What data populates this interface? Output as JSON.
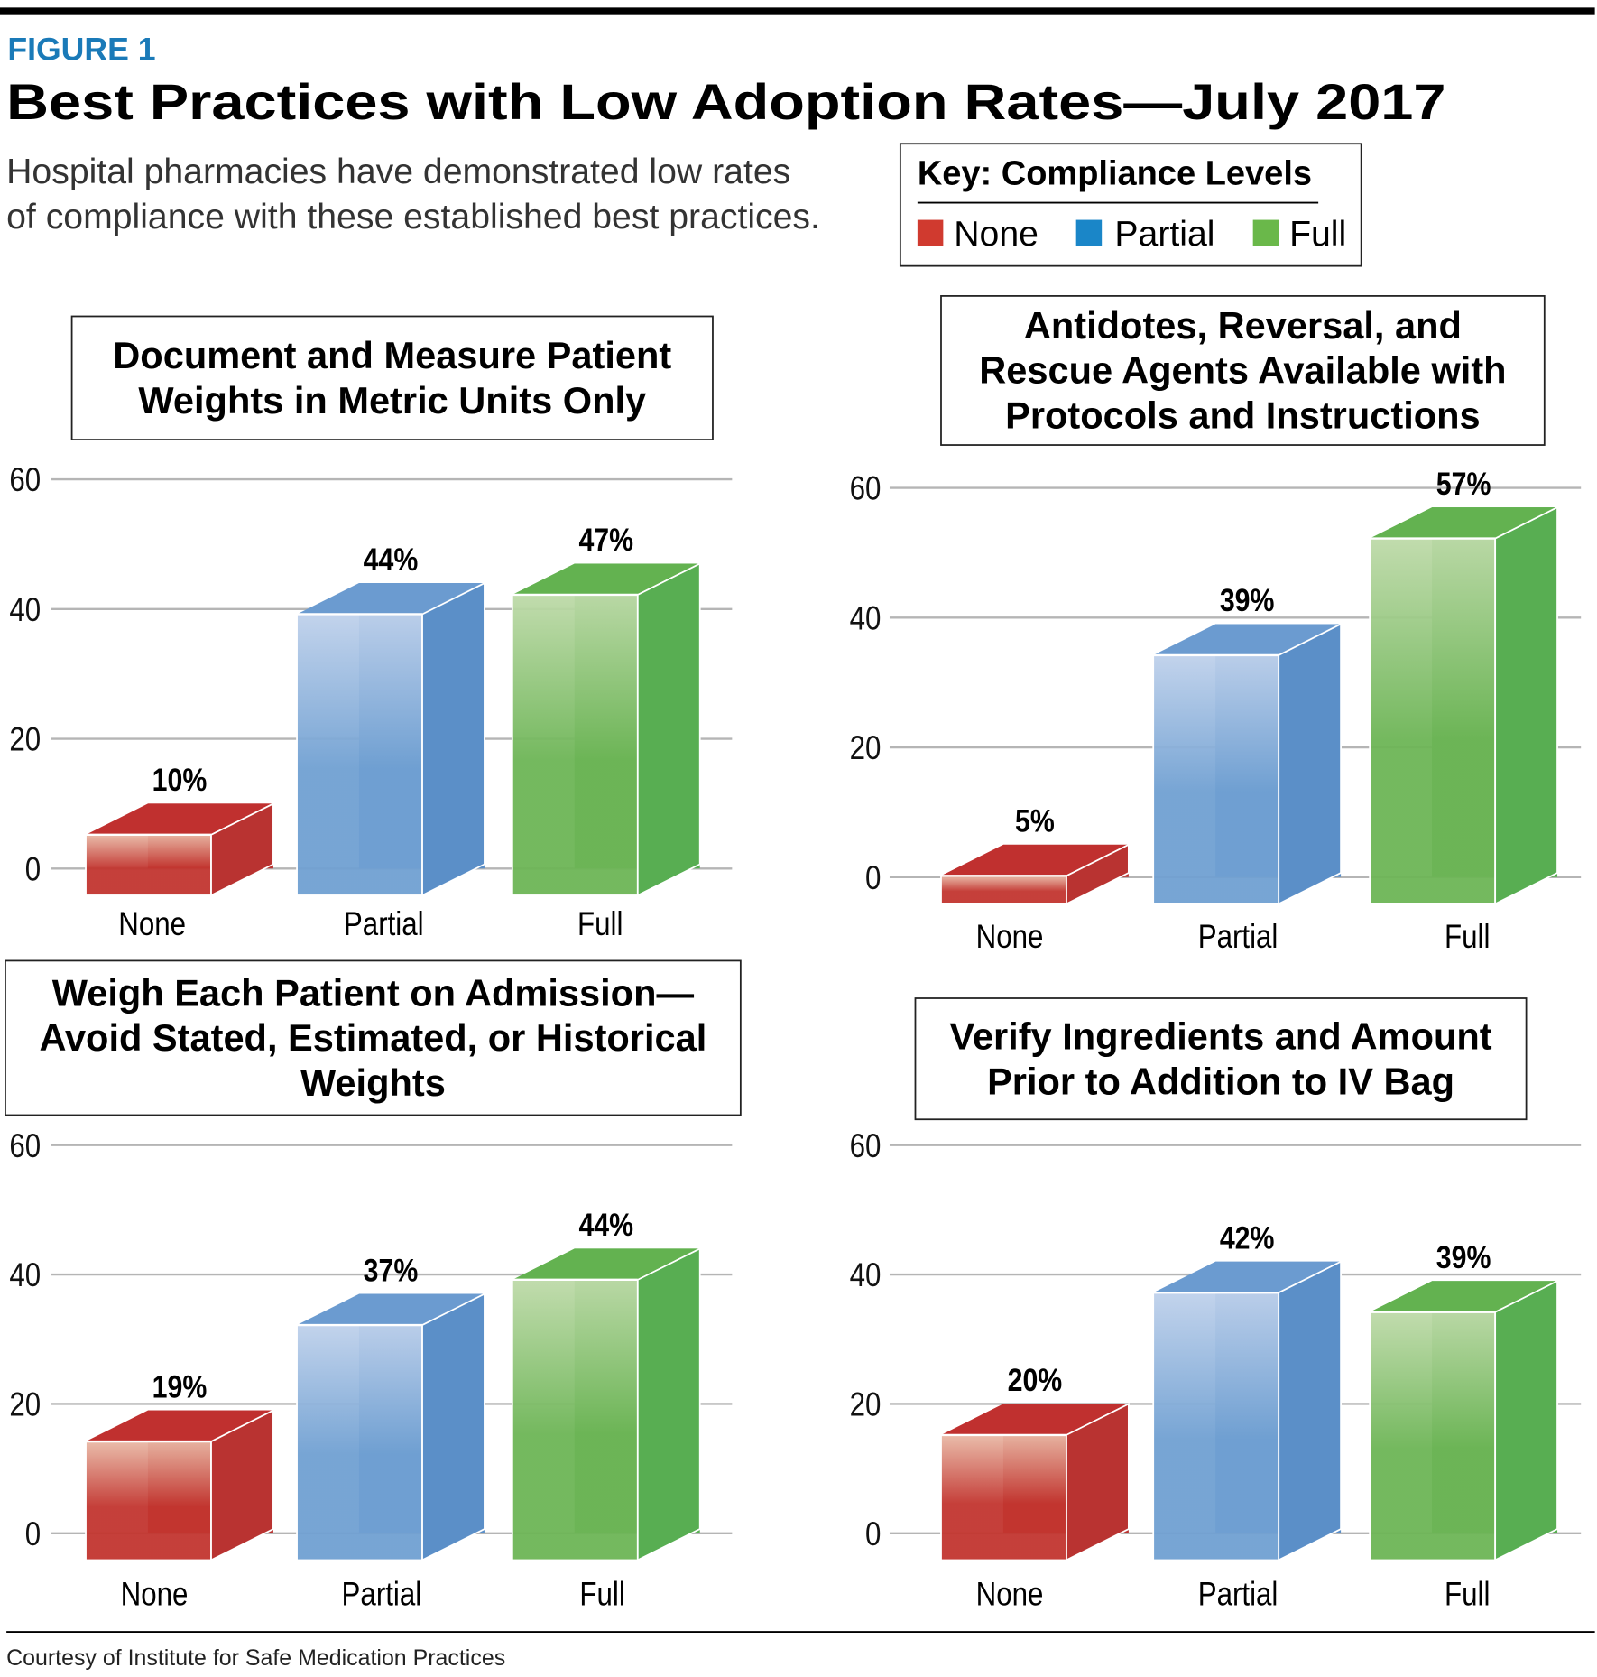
{
  "figure_label": "FIGURE 1",
  "title": "Best Practices with Low Adoption Rates—July 2017",
  "subtitle_lines": [
    "Hospital pharmacies have demonstrated low rates",
    "of compliance with these established best practices."
  ],
  "key": {
    "title": "Key: Compliance Levels",
    "items": [
      {
        "label": "None",
        "color": "#d03a2f"
      },
      {
        "label": "Partial",
        "color": "#1a86c8"
      },
      {
        "label": "Full",
        "color": "#6ab84a"
      }
    ]
  },
  "colors": {
    "figure_label": "#1a7ab8",
    "none": {
      "front_light": "#e9b9a6",
      "front": "#c2352f",
      "side": "#b93331",
      "top": "#c0302f"
    },
    "partial": {
      "front_light": "#bfd1eb",
      "front": "#70a0d2",
      "side": "#5b8fc8",
      "top": "#6b9bd0"
    },
    "full": {
      "front_light": "#bedaa9",
      "front": "#6db556",
      "side": "#58ae52",
      "top": "#63b250"
    }
  },
  "chart_data": [
    {
      "type": "bar",
      "title_lines": [
        "Document and Measure Patient",
        "Weights in Metric Units Only"
      ],
      "categories": [
        "None",
        "Partial",
        "Full"
      ],
      "values": [
        10,
        44,
        47
      ],
      "value_labels": [
        "10%",
        "44%",
        "47%"
      ],
      "yticks": [
        "0",
        "20",
        "40",
        "60"
      ],
      "ylim": [
        0,
        60
      ],
      "grid": true
    },
    {
      "type": "bar",
      "title_lines": [
        "Antidotes, Reversal, and",
        "Rescue Agents Available with",
        "Protocols and Instructions"
      ],
      "categories": [
        "None",
        "Partial",
        "Full"
      ],
      "values": [
        5,
        39,
        57
      ],
      "value_labels": [
        "5%",
        "39%",
        "57%"
      ],
      "yticks": [
        "0",
        "20",
        "40",
        "60"
      ],
      "ylim": [
        0,
        60
      ],
      "grid": true
    },
    {
      "type": "bar",
      "title_lines": [
        "Weigh Each Patient on Admission—",
        "Avoid Stated, Estimated, or Historical",
        "Weights"
      ],
      "categories": [
        "None",
        "Partial",
        "Full"
      ],
      "values": [
        19,
        37,
        44
      ],
      "value_labels": [
        "19%",
        "37%",
        "44%"
      ],
      "yticks": [
        "0",
        "20",
        "40",
        "60"
      ],
      "ylim": [
        0,
        60
      ],
      "grid": true
    },
    {
      "type": "bar",
      "title_lines": [
        "Verify Ingredients and Amount",
        "Prior to Addition to IV Bag"
      ],
      "categories": [
        "None",
        "Partial",
        "Full"
      ],
      "values": [
        20,
        42,
        39
      ],
      "value_labels": [
        "20%",
        "42%",
        "39%"
      ],
      "yticks": [
        "0",
        "20",
        "40",
        "60"
      ],
      "ylim": [
        0,
        60
      ],
      "grid": true
    }
  ],
  "footer": "Courtesy of Institute for Safe Medication Practices"
}
